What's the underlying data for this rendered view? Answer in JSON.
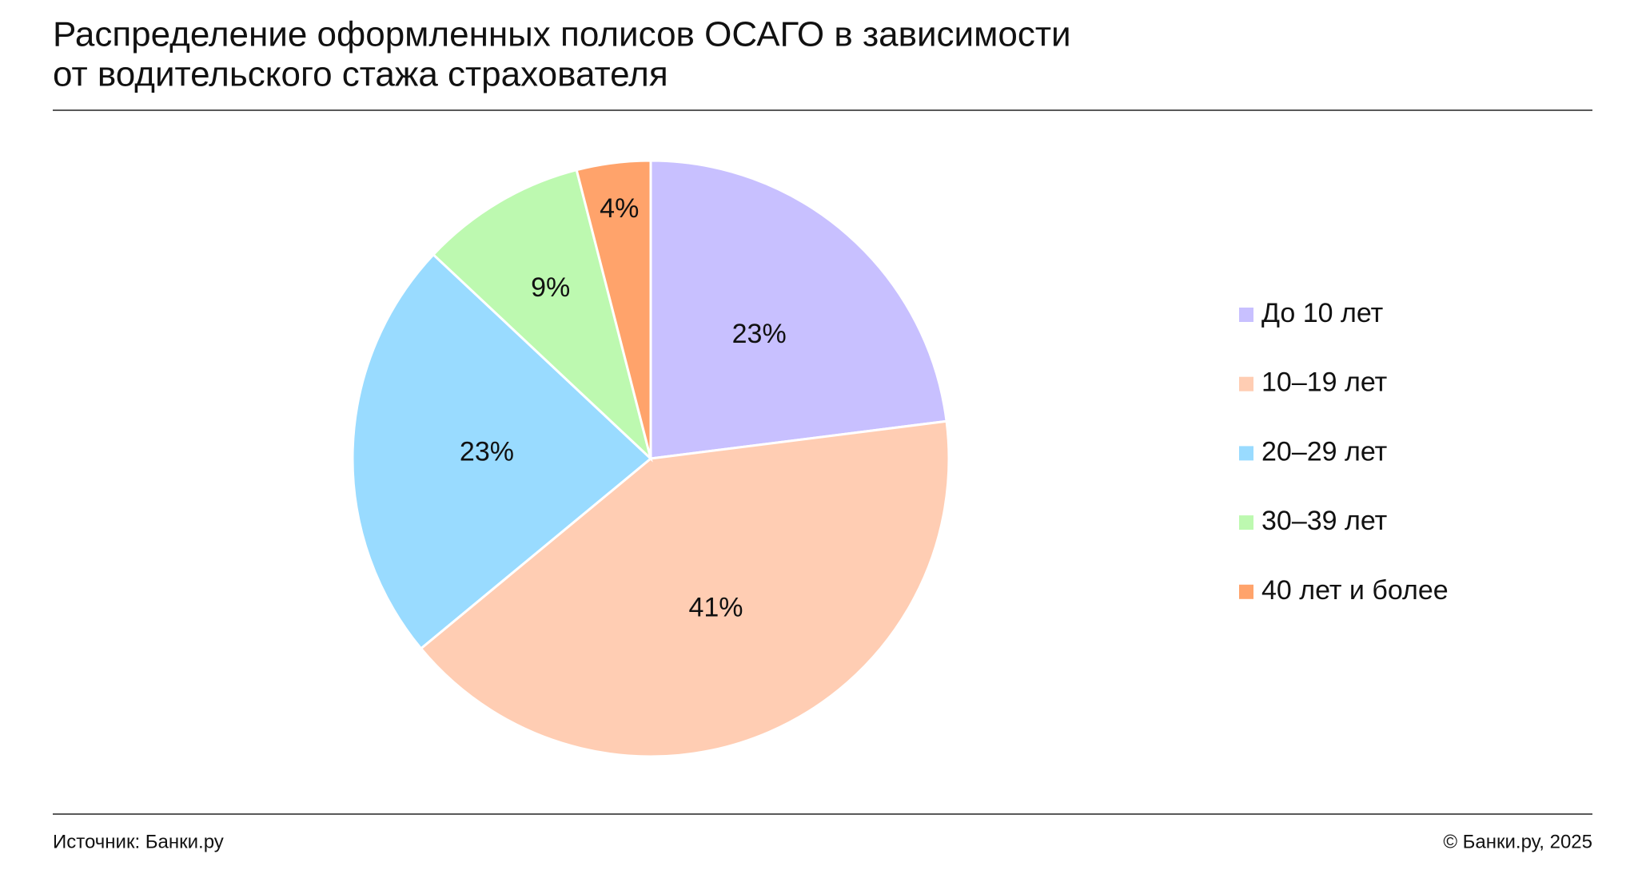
{
  "chart_data": {
    "type": "pie",
    "title": [
      "Распределение оформленных полисов ОСАГО в зависимости",
      "от водительского стажа страхователя"
    ],
    "categories": [
      "До 10 лет",
      "10–19 лет",
      "20–29 лет",
      "30–39 лет",
      "40 лет и более"
    ],
    "values": [
      23,
      41,
      23,
      9,
      4
    ],
    "value_labels": [
      "23%",
      "41%",
      "23%",
      "9%",
      "4%"
    ],
    "colors": [
      "#c8c0ff",
      "#ffcdb3",
      "#99dbff",
      "#bdf9b0",
      "#ffa36b"
    ],
    "legend": "right",
    "source": "Источник: Банки.ру",
    "copyright": "© Банки.ру, 2025"
  }
}
